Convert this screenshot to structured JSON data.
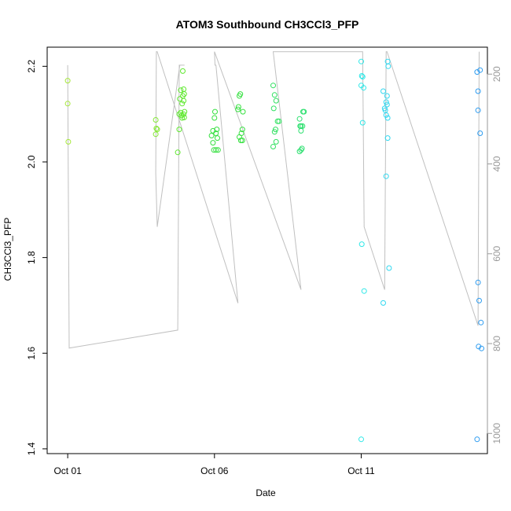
{
  "chart_data": {
    "type": "scatter",
    "title": "ATOM3 Southbound CH3CCl3_PFP",
    "xlabel": "Date",
    "ylabel": "CH3CCl3_PFP",
    "x_unit": "days since Oct 01",
    "xlim": [
      -0.7,
      14.3
    ],
    "ylim": [
      1.39,
      2.24
    ],
    "x_ticks": [
      {
        "value": 0,
        "label": "Oct 01"
      },
      {
        "value": 5,
        "label": "Oct 06"
      },
      {
        "value": 10,
        "label": "Oct 11"
      }
    ],
    "y_ticks": [
      1.4,
      1.6,
      1.8,
      2.0,
      2.2
    ],
    "y2": {
      "ticks": [
        200,
        400,
        600,
        800,
        1000
      ],
      "lim": [
        1045,
        140
      ],
      "color": "#9a9a9a",
      "note": "secondary altitude-like axis, inverted"
    },
    "grid": false,
    "legend": "none",
    "points": [
      {
        "x": 0.0,
        "y": 2.17,
        "color": "#a6e83a"
      },
      {
        "x": 0.0,
        "y": 2.122,
        "color": "#a6e83a"
      },
      {
        "x": 0.02,
        "y": 2.042,
        "color": "#a6e83a"
      },
      {
        "x": 3.0,
        "y": 2.088,
        "color": "#84e836"
      },
      {
        "x": 3.02,
        "y": 2.07,
        "color": "#84e836"
      },
      {
        "x": 3.05,
        "y": 2.068,
        "color": "#84e836"
      },
      {
        "x": 3.0,
        "y": 2.058,
        "color": "#84e836"
      },
      {
        "x": 3.75,
        "y": 2.02,
        "color": "#5ee82e"
      },
      {
        "x": 3.8,
        "y": 2.068,
        "color": "#5ee82e"
      },
      {
        "x": 3.8,
        "y": 2.1,
        "color": "#5ee82e"
      },
      {
        "x": 3.82,
        "y": 2.132,
        "color": "#5ee82e"
      },
      {
        "x": 3.85,
        "y": 2.15,
        "color": "#5ee82e"
      },
      {
        "x": 3.85,
        "y": 2.103,
        "color": "#5ee82e"
      },
      {
        "x": 3.88,
        "y": 2.097,
        "color": "#5ee82e"
      },
      {
        "x": 3.9,
        "y": 2.092,
        "color": "#5ee82e"
      },
      {
        "x": 3.9,
        "y": 2.122,
        "color": "#5ee82e"
      },
      {
        "x": 3.92,
        "y": 2.138,
        "color": "#5ee82e"
      },
      {
        "x": 3.92,
        "y": 2.19,
        "color": "#5ee82e"
      },
      {
        "x": 3.95,
        "y": 2.152,
        "color": "#5ee82e"
      },
      {
        "x": 3.95,
        "y": 2.128,
        "color": "#5ee82e"
      },
      {
        "x": 3.95,
        "y": 2.1,
        "color": "#5ee82e"
      },
      {
        "x": 3.97,
        "y": 2.142,
        "color": "#5ee82e"
      },
      {
        "x": 3.97,
        "y": 2.093,
        "color": "#5ee82e"
      },
      {
        "x": 3.98,
        "y": 2.105,
        "color": "#5ee82e"
      },
      {
        "x": 4.9,
        "y": 2.055,
        "color": "#36e040"
      },
      {
        "x": 4.95,
        "y": 2.065,
        "color": "#36e040"
      },
      {
        "x": 4.95,
        "y": 2.04,
        "color": "#36e040"
      },
      {
        "x": 4.98,
        "y": 2.025,
        "color": "#36e040"
      },
      {
        "x": 5.0,
        "y": 2.092,
        "color": "#36e040"
      },
      {
        "x": 5.02,
        "y": 2.105,
        "color": "#36e040"
      },
      {
        "x": 5.05,
        "y": 2.06,
        "color": "#36e040"
      },
      {
        "x": 5.05,
        "y": 2.025,
        "color": "#36e040"
      },
      {
        "x": 5.08,
        "y": 2.068,
        "color": "#36e040"
      },
      {
        "x": 5.1,
        "y": 2.05,
        "color": "#36e040"
      },
      {
        "x": 5.12,
        "y": 2.025,
        "color": "#36e040"
      },
      {
        "x": 5.8,
        "y": 2.11,
        "color": "#36e040"
      },
      {
        "x": 5.82,
        "y": 2.115,
        "color": "#36e040"
      },
      {
        "x": 5.85,
        "y": 2.138,
        "color": "#36e040"
      },
      {
        "x": 5.88,
        "y": 2.142,
        "color": "#36e040"
      },
      {
        "x": 5.85,
        "y": 2.052,
        "color": "#36e040"
      },
      {
        "x": 5.9,
        "y": 2.045,
        "color": "#36e040"
      },
      {
        "x": 5.92,
        "y": 2.06,
        "color": "#36e040"
      },
      {
        "x": 5.95,
        "y": 2.045,
        "color": "#36e040"
      },
      {
        "x": 5.95,
        "y": 2.068,
        "color": "#36e040"
      },
      {
        "x": 5.97,
        "y": 2.105,
        "color": "#36e040"
      },
      {
        "x": 7.0,
        "y": 2.16,
        "color": "#30e060"
      },
      {
        "x": 7.02,
        "y": 2.112,
        "color": "#30e060"
      },
      {
        "x": 7.05,
        "y": 2.14,
        "color": "#30e060"
      },
      {
        "x": 7.05,
        "y": 2.063,
        "color": "#30e060"
      },
      {
        "x": 7.08,
        "y": 2.068,
        "color": "#30e060"
      },
      {
        "x": 7.0,
        "y": 2.032,
        "color": "#30e060"
      },
      {
        "x": 7.1,
        "y": 2.128,
        "color": "#30e060"
      },
      {
        "x": 7.1,
        "y": 2.042,
        "color": "#30e060"
      },
      {
        "x": 7.15,
        "y": 2.085,
        "color": "#30e060"
      },
      {
        "x": 7.2,
        "y": 2.085,
        "color": "#30e060"
      },
      {
        "x": 7.9,
        "y": 2.09,
        "color": "#2ee070"
      },
      {
        "x": 7.92,
        "y": 2.075,
        "color": "#2ee070"
      },
      {
        "x": 7.95,
        "y": 2.075,
        "color": "#2ee070"
      },
      {
        "x": 7.95,
        "y": 2.065,
        "color": "#2ee070"
      },
      {
        "x": 7.9,
        "y": 2.022,
        "color": "#2ee070"
      },
      {
        "x": 7.95,
        "y": 2.025,
        "color": "#2ee070"
      },
      {
        "x": 7.98,
        "y": 2.028,
        "color": "#2ee070"
      },
      {
        "x": 8.0,
        "y": 2.075,
        "color": "#2ee070"
      },
      {
        "x": 8.02,
        "y": 2.105,
        "color": "#2ee070"
      },
      {
        "x": 8.05,
        "y": 2.105,
        "color": "#2ee070"
      },
      {
        "x": 10.0,
        "y": 2.21,
        "color": "#30e8e8"
      },
      {
        "x": 10.02,
        "y": 2.18,
        "color": "#30e8e8"
      },
      {
        "x": 10.05,
        "y": 2.178,
        "color": "#30e8e8"
      },
      {
        "x": 10.0,
        "y": 2.16,
        "color": "#30e8e8"
      },
      {
        "x": 10.08,
        "y": 2.155,
        "color": "#30e8e8"
      },
      {
        "x": 10.05,
        "y": 2.082,
        "color": "#30e8e8"
      },
      {
        "x": 10.02,
        "y": 1.828,
        "color": "#30e8e8"
      },
      {
        "x": 10.1,
        "y": 1.73,
        "color": "#30e8e8"
      },
      {
        "x": 10.0,
        "y": 1.42,
        "color": "#30e8e8"
      },
      {
        "x": 10.75,
        "y": 2.148,
        "color": "#30d8f0"
      },
      {
        "x": 10.8,
        "y": 2.112,
        "color": "#30d8f0"
      },
      {
        "x": 10.82,
        "y": 2.108,
        "color": "#30d8f0"
      },
      {
        "x": 10.85,
        "y": 2.125,
        "color": "#30d8f0"
      },
      {
        "x": 10.85,
        "y": 2.098,
        "color": "#30d8f0"
      },
      {
        "x": 10.88,
        "y": 2.12,
        "color": "#30d8f0"
      },
      {
        "x": 10.9,
        "y": 2.21,
        "color": "#30d8f0"
      },
      {
        "x": 10.92,
        "y": 2.2,
        "color": "#30d8f0"
      },
      {
        "x": 10.88,
        "y": 2.138,
        "color": "#30d8f0"
      },
      {
        "x": 10.9,
        "y": 2.092,
        "color": "#30d8f0"
      },
      {
        "x": 10.9,
        "y": 2.05,
        "color": "#30d8f0"
      },
      {
        "x": 10.85,
        "y": 1.97,
        "color": "#30d8f0"
      },
      {
        "x": 10.95,
        "y": 1.778,
        "color": "#30d8f0"
      },
      {
        "x": 10.75,
        "y": 1.705,
        "color": "#30d8f0"
      },
      {
        "x": 13.95,
        "y": 2.188,
        "color": "#2e9cf0"
      },
      {
        "x": 14.05,
        "y": 2.192,
        "color": "#2e9cf0"
      },
      {
        "x": 13.98,
        "y": 2.148,
        "color": "#2e9cf0"
      },
      {
        "x": 13.98,
        "y": 2.108,
        "color": "#2e9cf0"
      },
      {
        "x": 14.05,
        "y": 2.06,
        "color": "#2e9cf0"
      },
      {
        "x": 13.98,
        "y": 1.748,
        "color": "#2e9cf0"
      },
      {
        "x": 14.02,
        "y": 1.71,
        "color": "#2e9cf0"
      },
      {
        "x": 14.08,
        "y": 1.664,
        "color": "#2e9cf0"
      },
      {
        "x": 14.0,
        "y": 1.614,
        "color": "#2e9cf0"
      },
      {
        "x": 14.1,
        "y": 1.61,
        "color": "#2e9cf0"
      },
      {
        "x": 13.95,
        "y": 1.42,
        "color": "#2e9cf0"
      }
    ],
    "profile_line": {
      "color": "#c0c0c0",
      "x": [
        0.0,
        0.05,
        3.75,
        3.8,
        3.95,
        3.98,
        3.82,
        3.05,
        3.0,
        3.02,
        3.05,
        5.8,
        5.05,
        5.02,
        5.0,
        7.95,
        7.0,
        7.05,
        10.0,
        10.05,
        10.1,
        10.8,
        10.85,
        10.88,
        13.98,
        14.02
      ],
      "y2": [
        180,
        810,
        770,
        180,
        180,
        180,
        180,
        540,
        420,
        150,
        150,
        710,
        180,
        180,
        150,
        680,
        150,
        150,
        150,
        150,
        540,
        680,
        150,
        150,
        760,
        150
      ]
    }
  }
}
